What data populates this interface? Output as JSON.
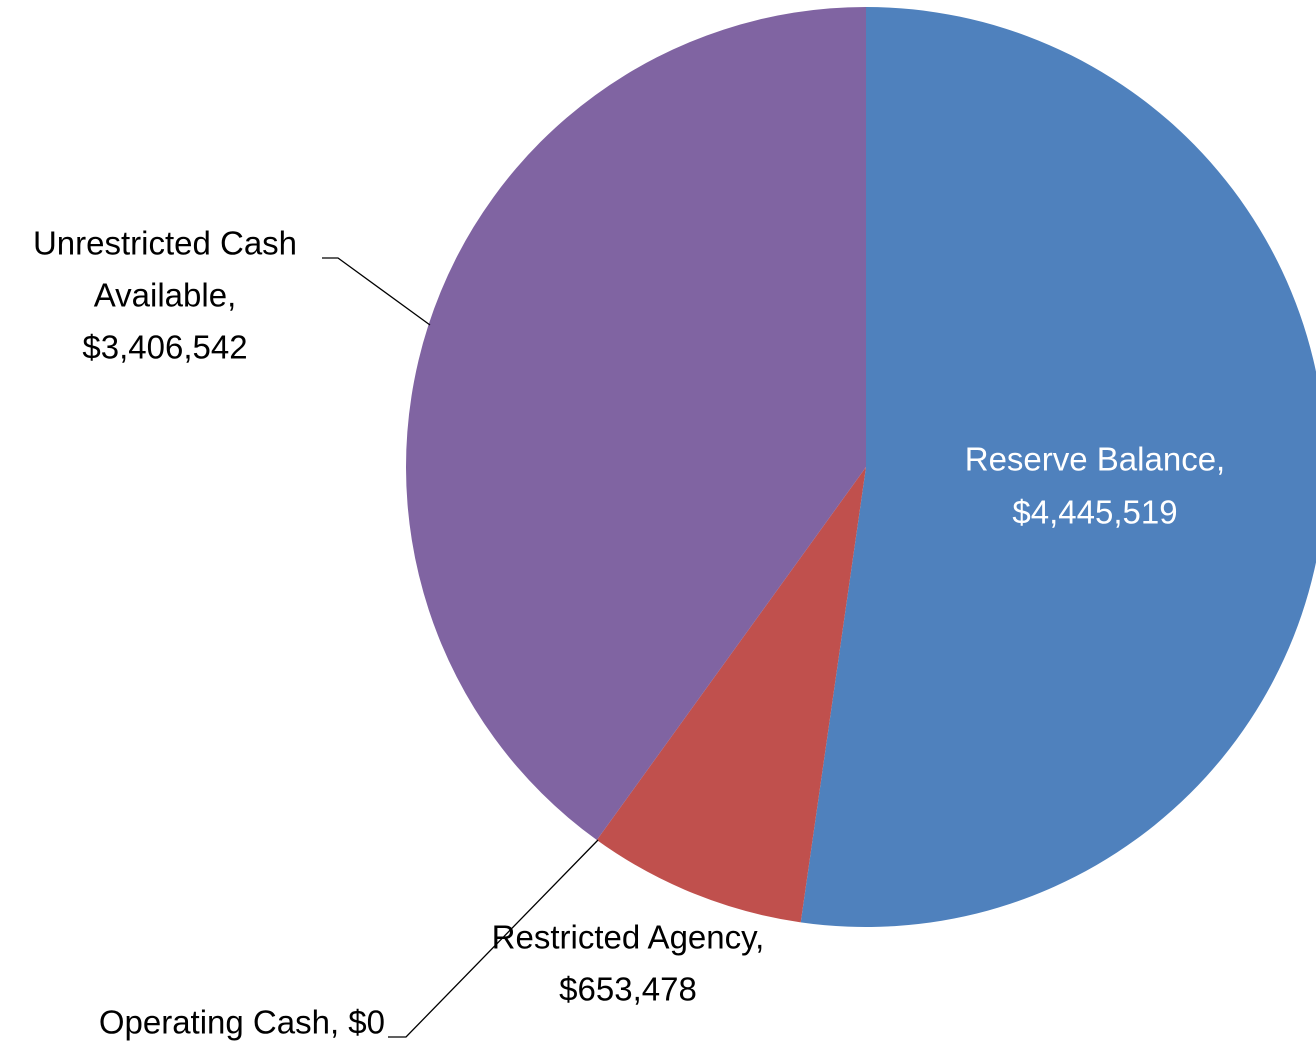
{
  "chart_data": {
    "type": "pie",
    "values": [
      4445519,
      653478,
      0,
      3406542
    ],
    "value_labels": [
      [
        "Reserve Balance,",
        "$4,445,519"
      ],
      [
        "Restricted Agency,",
        "$653,478"
      ],
      [
        "Operating Cash, $0"
      ],
      [
        "Unrestricted Cash",
        "Available,",
        "$3,406,542"
      ]
    ],
    "colors": [
      "#4f81bd",
      "#c0504d",
      "#9bbb59",
      "#8064a2"
    ],
    "label_colors": [
      "#ffffff",
      "#000000",
      "#000000",
      "#000000"
    ]
  }
}
